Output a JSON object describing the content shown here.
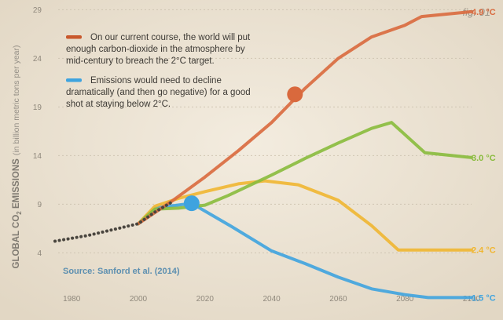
{
  "chart_data": {
    "type": "line",
    "figure_label": "fig. 01",
    "title": "",
    "ylabel_main": "GLOBAL CO",
    "ylabel_sub": "2",
    "ylabel_main2": " EMISSIONS",
    "ylabel_unit": "(in billion metric tons per year)",
    "xlabel": "",
    "xlim": [
      1975,
      2100
    ],
    "ylim": [
      0,
      30
    ],
    "xticks": [
      "1980",
      "2000",
      "2020",
      "2040",
      "2060",
      "2080",
      "2100"
    ],
    "yticks": [
      "4",
      "9",
      "14",
      "19",
      "24",
      "29"
    ],
    "source": "Source: Sanford et al. (2014)",
    "legend": [
      {
        "lines": [
          "On our current course, the world will put",
          "enough carbon-dioxide in the atmosphere by",
          "mid-century to breach the 2°C target."
        ],
        "color": "#c9582c"
      },
      {
        "lines": [
          "Emissions would need to decline",
          "dramatically (and then go negative) for a good",
          "shot at staying below 2°C."
        ],
        "color": "#3ea3df"
      }
    ],
    "historical": {
      "name": "Historical",
      "color": "#2f2c28",
      "points": [
        [
          1975,
          5.2
        ],
        [
          1985,
          5.8
        ],
        [
          1995,
          6.6
        ],
        [
          2000,
          7.0
        ],
        [
          2005,
          8.2
        ],
        [
          2010,
          9.2
        ]
      ]
    },
    "series": [
      {
        "name": "4.9 °C",
        "label": "4.9 °C",
        "color": "#d9693d",
        "marker": [
          2047,
          20.3
        ],
        "points": [
          [
            2000,
            7.0
          ],
          [
            2010,
            9.3
          ],
          [
            2020,
            11.8
          ],
          [
            2030,
            14.5
          ],
          [
            2040,
            17.4
          ],
          [
            2050,
            20.9
          ],
          [
            2060,
            24.0
          ],
          [
            2070,
            26.2
          ],
          [
            2080,
            27.4
          ],
          [
            2085,
            28.3
          ],
          [
            2100,
            28.8
          ]
        ]
      },
      {
        "name": "3.0 °C",
        "label": "3.0 °C",
        "color": "#88bb3c",
        "points": [
          [
            2000,
            7.0
          ],
          [
            2005,
            8.5
          ],
          [
            2012,
            8.6
          ],
          [
            2020,
            8.9
          ],
          [
            2027,
            9.9
          ],
          [
            2040,
            12.0
          ],
          [
            2050,
            13.7
          ],
          [
            2060,
            15.3
          ],
          [
            2070,
            16.8
          ],
          [
            2076,
            17.4
          ],
          [
            2086,
            14.3
          ],
          [
            2100,
            13.8
          ]
        ]
      },
      {
        "name": "2.4 °C",
        "label": "2.4 °C",
        "color": "#f0b631",
        "points": [
          [
            2000,
            7.0
          ],
          [
            2005,
            8.8
          ],
          [
            2012,
            9.6
          ],
          [
            2020,
            10.3
          ],
          [
            2030,
            11.1
          ],
          [
            2038,
            11.4
          ],
          [
            2048,
            11.0
          ],
          [
            2060,
            9.4
          ],
          [
            2070,
            6.8
          ],
          [
            2078,
            4.3
          ],
          [
            2100,
            4.3
          ]
        ]
      },
      {
        "name": "1.5 °C",
        "label": "1.5 °C",
        "color": "#3ea3df",
        "marker": [
          2016,
          9.1
        ],
        "points": [
          [
            2000,
            7.0
          ],
          [
            2005,
            8.6
          ],
          [
            2016,
            9.1
          ],
          [
            2028,
            6.7
          ],
          [
            2040,
            4.2
          ],
          [
            2050,
            2.9
          ],
          [
            2060,
            1.5
          ],
          [
            2070,
            0.3
          ],
          [
            2080,
            -0.3
          ],
          [
            2087,
            -0.6
          ],
          [
            2100,
            -0.6
          ]
        ]
      }
    ]
  }
}
